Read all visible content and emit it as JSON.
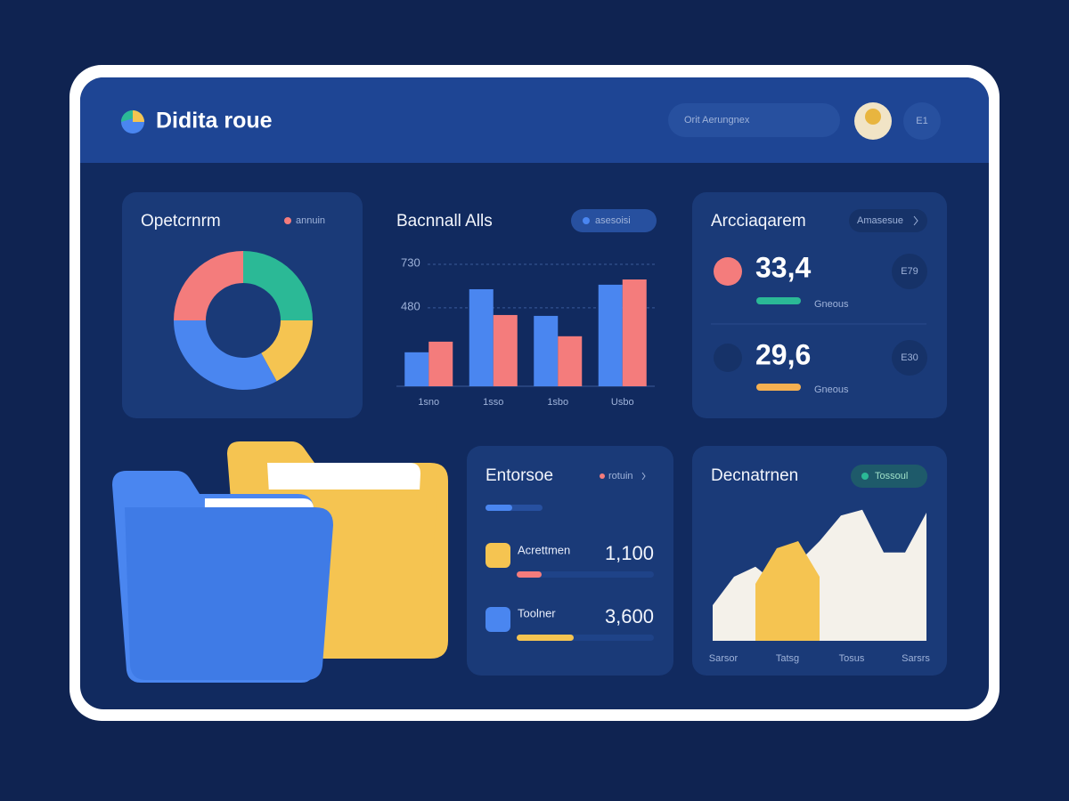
{
  "header": {
    "title": "Didita roue",
    "search": "Orit Aerungnex",
    "button": "E1"
  },
  "stats": {
    "title": "Arcciaqarem",
    "link": "Amasesue",
    "items": [
      {
        "value": "33,4",
        "badge": "E79",
        "caption": "Gneous"
      },
      {
        "value": "29,6",
        "badge": "E30",
        "caption": "Gneous"
      }
    ]
  },
  "list": {
    "title": "Entorsoe",
    "link": "rotuin",
    "rows": [
      {
        "label": "Acrettmen",
        "value": "1,100"
      },
      {
        "label": "Toolner",
        "value": "3,600"
      }
    ]
  },
  "chart_data": [
    {
      "type": "pie",
      "title": "Opetcrnrm",
      "legend": "annuin",
      "values": [
        25,
        17,
        33,
        25
      ],
      "colors": [
        "#2bb996",
        "#f5c451",
        "#4a86f0",
        "#f47c7c"
      ]
    },
    {
      "type": "bar",
      "title": "Bacnnall Alls",
      "badge": "asesoisi",
      "categories": [
        "1sno",
        "1sso",
        "1sbo",
        "Usbo"
      ],
      "series": [
        {
          "color": "#4a86f0",
          "values": [
            225,
            587,
            434,
            613
          ]
        },
        {
          "color": "#f47c7c",
          "values": [
            286,
            439,
            317,
            643
          ]
        }
      ],
      "ylim": [
        30,
        730
      ],
      "yticks": [
        480,
        730
      ],
      "grid": true
    },
    {
      "type": "area",
      "title": "Decnatrnen",
      "badge": "Tossoul",
      "x": [
        0,
        1,
        2,
        3,
        4,
        5,
        6,
        7,
        8,
        9,
        10
      ],
      "xlim": [
        0,
        10
      ],
      "xticks": [
        {
          "value": 0.5,
          "label": "Sarsor"
        },
        {
          "value": 3.5,
          "label": "Tatsg"
        },
        {
          "value": 6.5,
          "label": "Tosus"
        },
        {
          "value": 9.5,
          "label": "Sarsrs"
        }
      ],
      "ylim": [
        0,
        100
      ],
      "series": [
        {
          "color": "#f4f1ea",
          "values": [
            25,
            45,
            52,
            40,
            55,
            70,
            88,
            92,
            62,
            62,
            90
          ]
        },
        {
          "color": "#f5c451",
          "values": [
            null,
            null,
            40,
            65,
            70,
            45,
            null,
            null,
            null,
            null,
            null
          ]
        }
      ]
    }
  ]
}
